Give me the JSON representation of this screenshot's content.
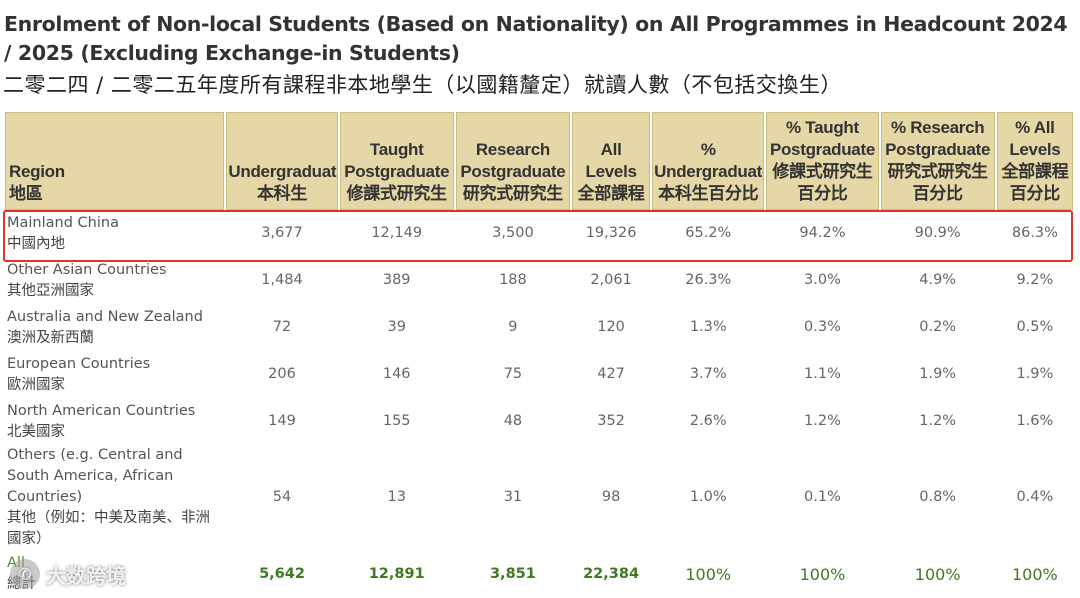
{
  "title": {
    "en": "Enrolment of Non-local Students (Based on Nationality) on All Programmes in Headcount 2024 / 2025 (Excluding Exchange-in Students)",
    "zh": "二零二四 / 二零二五年度所有課程非本地學生（以國籍釐定）就讀人數（不包括交換生）"
  },
  "columns": [
    {
      "en": "Region",
      "zh": "地區"
    },
    {
      "en": "Undergraduate",
      "zh": "本科生"
    },
    {
      "en": "Taught Postgraduate",
      "zh": "修課式研究生"
    },
    {
      "en": "Research Postgraduate",
      "zh": "研究式研究生"
    },
    {
      "en": "All Levels",
      "zh": "全部課程"
    },
    {
      "en": "% Undergraduate",
      "zh": "本科生百分比"
    },
    {
      "en": "% Taught Postgraduate",
      "zh": "修課式研究生百分比"
    },
    {
      "en": "% Research Postgraduate",
      "zh": "研究式研究生百分比"
    },
    {
      "en": "% All Levels",
      "zh": "全部課程百分比"
    }
  ],
  "rows": [
    {
      "region_en": "Mainland China",
      "region_zh": "中國內地",
      "ug": "3,677",
      "tpg": "12,149",
      "rpg": "3,500",
      "all": "19,326",
      "pct_ug": "65.2%",
      "pct_tpg": "94.2%",
      "pct_rpg": "90.9%",
      "pct_all": "86.3%"
    },
    {
      "region_en": "Other Asian Countries",
      "region_zh": "其他亞洲國家",
      "ug": "1,484",
      "tpg": "389",
      "rpg": "188",
      "all": "2,061",
      "pct_ug": "26.3%",
      "pct_tpg": "3.0%",
      "pct_rpg": "4.9%",
      "pct_all": "9.2%"
    },
    {
      "region_en": "Australia and New Zealand",
      "region_zh": "澳洲及新西蘭",
      "ug": "72",
      "tpg": "39",
      "rpg": "9",
      "all": "120",
      "pct_ug": "1.3%",
      "pct_tpg": "0.3%",
      "pct_rpg": "0.2%",
      "pct_all": "0.5%"
    },
    {
      "region_en": "European Countries",
      "region_zh": "歐洲國家",
      "ug": "206",
      "tpg": "146",
      "rpg": "75",
      "all": "427",
      "pct_ug": "3.7%",
      "pct_tpg": "1.1%",
      "pct_rpg": "1.9%",
      "pct_all": "1.9%"
    },
    {
      "region_en": "North American Countries",
      "region_zh": "北美國家",
      "ug": "149",
      "tpg": "155",
      "rpg": "48",
      "all": "352",
      "pct_ug": "2.6%",
      "pct_tpg": "1.2%",
      "pct_rpg": "1.2%",
      "pct_all": "1.6%"
    },
    {
      "region_en": "Others (e.g. Central and South America, African Countries)",
      "region_zh": "其他（例如：中美及南美、非洲國家）",
      "ug": "54",
      "tpg": "13",
      "rpg": "31",
      "all": "98",
      "pct_ug": "1.0%",
      "pct_tpg": "0.1%",
      "pct_rpg": "0.8%",
      "pct_all": "0.4%"
    }
  ],
  "total": {
    "region_en": "All",
    "region_zh": "總計",
    "ug": "5,642",
    "tpg": "12,891",
    "rpg": "3,851",
    "all": "22,384",
    "pct_ug": "100%",
    "pct_tpg": "100%",
    "pct_rpg": "100%",
    "pct_all": "100%"
  },
  "watermark": {
    "text": "大数跨境",
    "logo_glyph": "✆"
  },
  "colors": {
    "header_bg": "#e6d7a6",
    "header_border": "#cbbb7c",
    "highlight_border": "#e0322f",
    "total_text": "#3f7a1f"
  }
}
